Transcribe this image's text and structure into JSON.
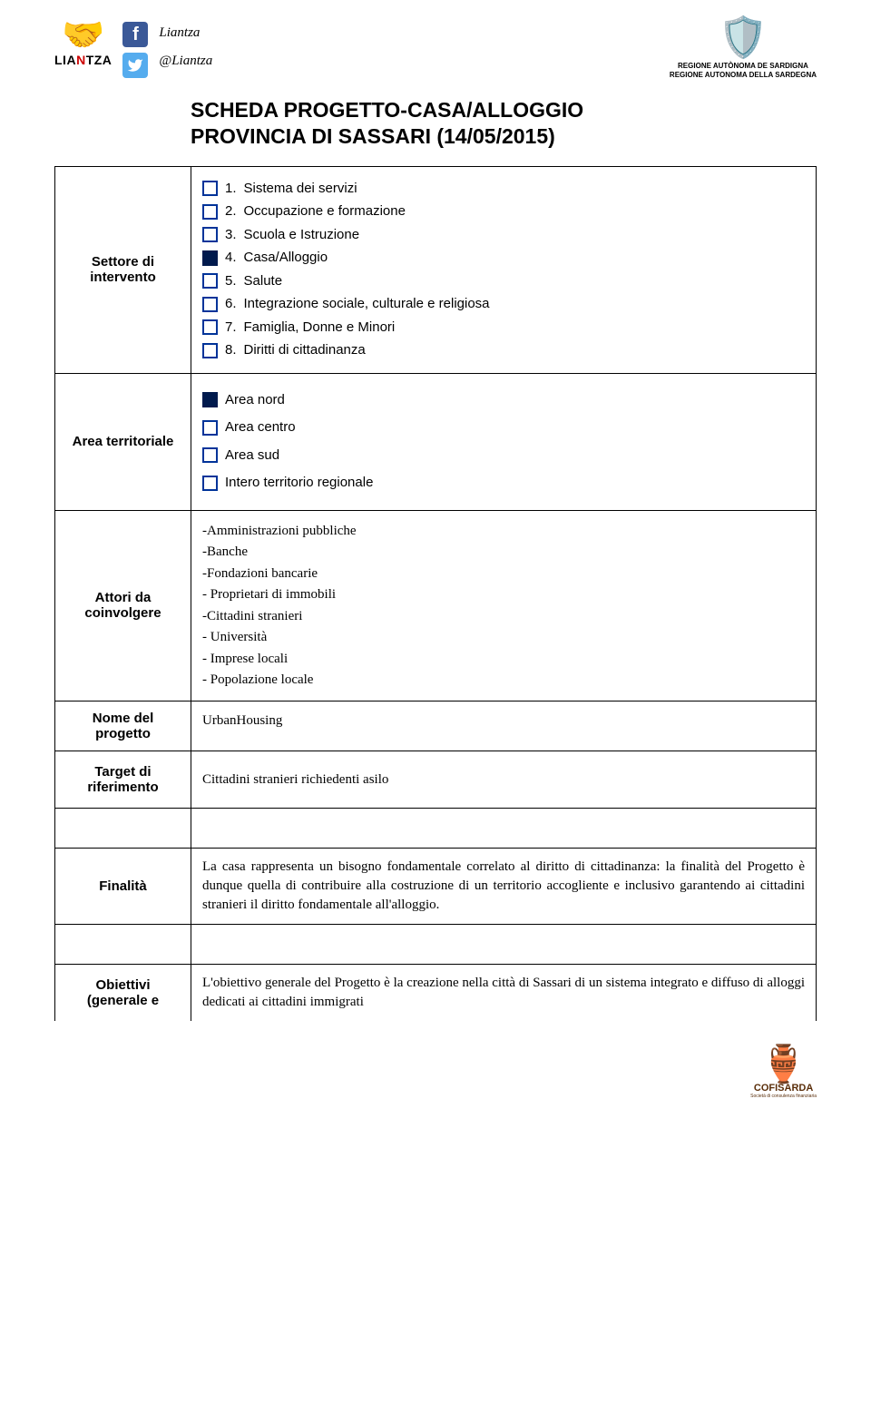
{
  "header": {
    "brand_top": "LIA",
    "brand_n": "N",
    "brand_bottom": "TZA",
    "fb_label": "Liantza",
    "tw_label": "@Liantza",
    "region_line1": "REGIONE AUTÒNOMA DE SARDIGNA",
    "region_line2": "REGIONE AUTONOMA DELLA SARDEGNA"
  },
  "title": {
    "line1": "SCHEDA PROGETTO-CASA/ALLOGGIO",
    "line2": "PROVINCIA DI SASSARI (14/05/2015)"
  },
  "rows": {
    "settore": {
      "label": "Settore di intervento",
      "options": [
        {
          "num": "1.",
          "text": "Sistema dei servizi",
          "checked": false
        },
        {
          "num": "2.",
          "text": "Occupazione e formazione",
          "checked": false
        },
        {
          "num": "3.",
          "text": "Scuola e Istruzione",
          "checked": false
        },
        {
          "num": "4.",
          "text": "Casa/Alloggio",
          "checked": true
        },
        {
          "num": "5.",
          "text": "Salute",
          "checked": false
        },
        {
          "num": "6.",
          "text": "Integrazione sociale, culturale e religiosa",
          "checked": false
        },
        {
          "num": "7.",
          "text": "Famiglia, Donne e Minori",
          "checked": false
        },
        {
          "num": "8.",
          "text": "Diritti di cittadinanza",
          "checked": false
        }
      ]
    },
    "area": {
      "label": "Area territoriale",
      "options": [
        {
          "text": "Area nord",
          "checked": true
        },
        {
          "text": "Area centro",
          "checked": false
        },
        {
          "text": "Area sud",
          "checked": false
        },
        {
          "text": "Intero territorio regionale",
          "checked": false
        }
      ]
    },
    "attori": {
      "label": "Attori da coinvolgere",
      "items": [
        "-Amministrazioni pubbliche",
        "-Banche",
        "-Fondazioni bancarie",
        "- Proprietari di immobili",
        "-Cittadini stranieri",
        "- Università",
        "- Imprese locali",
        "- Popolazione locale"
      ]
    },
    "nome": {
      "label": "Nome del progetto",
      "value": "UrbanHousing"
    },
    "target": {
      "label": "Target di riferimento",
      "value": "Cittadini stranieri richiedenti asilo"
    },
    "finalita": {
      "label": "Finalità",
      "text": "La casa rappresenta un bisogno fondamentale correlato al diritto di cittadinanza: la finalità del Progetto è dunque quella di contribuire alla costruzione di un territorio accogliente e inclusivo garantendo ai cittadini stranieri il diritto fondamentale all'alloggio."
    },
    "obiettivi": {
      "label": "Obiettivi (generale e",
      "text": "L'obiettivo generale del Progetto è la creazione nella città di Sassari di un sistema integrato e diffuso di alloggi dedicati ai cittadini immigrati"
    }
  },
  "footer": {
    "brand": "COFISARDA",
    "sub": "Società di consulenza finanziaria"
  },
  "colors": {
    "checkbox_border": "#003399",
    "checkbox_fill": "#001a4d"
  }
}
